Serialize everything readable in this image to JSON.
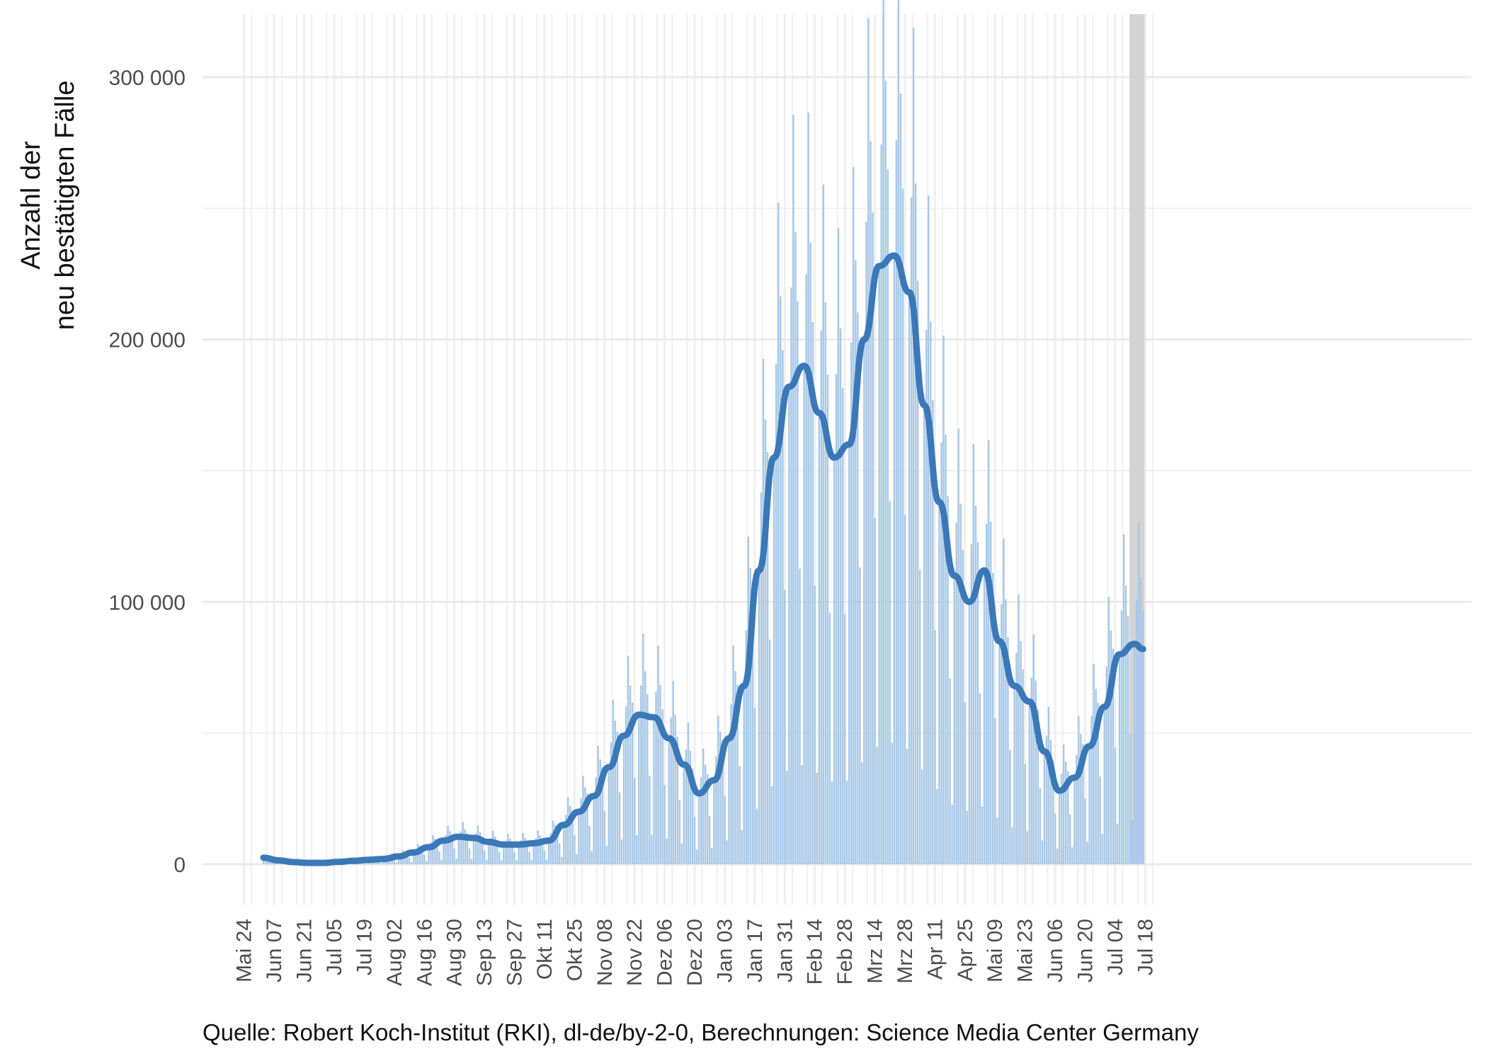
{
  "chart_data": {
    "type": "bar",
    "title": "",
    "xlabel": "",
    "ylabel": "Anzahl der\nneu bestätigten Fälle",
    "caption": "Quelle: Robert Koch-Institut (RKI), dl-de/by-2-0, Berechnungen: Science Media Center Germany",
    "ylim": [
      -15000,
      323000
    ],
    "y_ticks": [
      0,
      100000,
      200000,
      300000
    ],
    "y_tick_labels": [
      "0",
      "100 000",
      "200 000",
      "300 000"
    ],
    "x_tick_labels": [
      "Mai 24",
      "Jun 07",
      "Jun 21",
      "Jul 05",
      "Jul 19",
      "Aug 02",
      "Aug 16",
      "Aug 30",
      "Sep 13",
      "Sep 27",
      "Okt 11",
      "Okt 25",
      "Nov 08",
      "Nov 22",
      "Dez 06",
      "Dez 20",
      "Jan 03",
      "Jan 17",
      "Jan 31",
      "Feb 14",
      "Feb 28",
      "Mrz 14",
      "Mrz 28",
      "Apr 11",
      "Apr 25",
      "Mai 09",
      "Mai 23",
      "Jun 06",
      "Jun 20",
      "Jul 04",
      "Jul 18"
    ],
    "x_first_tick_index": -9,
    "x_tick_interval_days": 14,
    "data_start": "Jun 02",
    "highlight_last_days": 7,
    "grid": true,
    "series": [
      {
        "name": "",
        "kind": "bar",
        "color": "#a8c8e6",
        "weekly_means": [
          2500,
          1500,
          800,
          500,
          500,
          900,
          1300,
          1700,
          2000,
          3000,
          4500,
          6500,
          9000,
          10500,
          10000,
          8500,
          7500,
          7500,
          8000,
          9000,
          15000,
          20000,
          26000,
          37000,
          49000,
          57000,
          56000,
          48000,
          38000,
          27000,
          32000,
          48000,
          68000,
          112000,
          155000,
          182000,
          190000,
          172000,
          155000,
          160000,
          200000,
          228000,
          232000,
          218000,
          175000,
          138000,
          110000,
          100000,
          112000,
          85000,
          68000,
          62000,
          43000,
          28000,
          33000,
          45000,
          60000,
          80000,
          84000
        ],
        "day_pattern": [
          1.0,
          1.2,
          1.55,
          1.3,
          1.15,
          0.6,
          0.2
        ]
      },
      {
        "name": "",
        "kind": "line",
        "color": "#3a78b8",
        "x_day": [
          0,
          7,
          14,
          21,
          28,
          35,
          42,
          49,
          56,
          63,
          70,
          77,
          84,
          91,
          98,
          105,
          112,
          119,
          126,
          133,
          140,
          147,
          154,
          161,
          168,
          175,
          182,
          189,
          196,
          203,
          210,
          217,
          224,
          231,
          238,
          245,
          252,
          259,
          266,
          273,
          280,
          287,
          294,
          301,
          308,
          315,
          322,
          329,
          336,
          343,
          350,
          357,
          364,
          371,
          378,
          385,
          392,
          399,
          406,
          410
        ],
        "y": [
          2500,
          1500,
          800,
          500,
          500,
          900,
          1300,
          1700,
          2000,
          3000,
          4500,
          6500,
          9000,
          10500,
          10000,
          8500,
          7500,
          7500,
          8000,
          9000,
          15000,
          20000,
          26000,
          37000,
          49000,
          57000,
          56000,
          48000,
          38000,
          27000,
          32000,
          48000,
          68000,
          112000,
          155000,
          182000,
          190000,
          172000,
          155000,
          160000,
          200000,
          228000,
          232000,
          218000,
          175000,
          138000,
          110000,
          100000,
          112000,
          85000,
          68000,
          62000,
          43000,
          28000,
          33000,
          45000,
          60000,
          80000,
          84000,
          82000
        ]
      }
    ]
  }
}
